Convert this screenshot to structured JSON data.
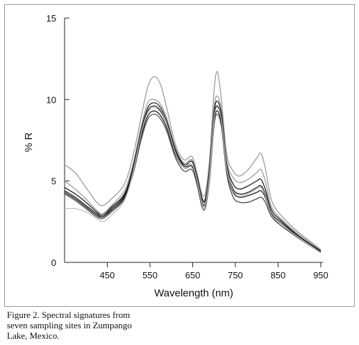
{
  "chart_data": {
    "type": "line",
    "xlabel": "Wavelength (nm)",
    "ylabel": "% R",
    "xlim": [
      350,
      955
    ],
    "ylim": [
      0,
      15
    ],
    "xticks": [
      450,
      550,
      650,
      750,
      850,
      950
    ],
    "yticks": [
      0,
      5,
      10,
      15
    ],
    "grid": false,
    "x": [
      350,
      375,
      400,
      425,
      440,
      460,
      490,
      510,
      530,
      545,
      560,
      575,
      590,
      610,
      630,
      648,
      660,
      672,
      680,
      690,
      700,
      708,
      718,
      730,
      745,
      760,
      780,
      800,
      810,
      820,
      835,
      860,
      900,
      950
    ],
    "series": [
      {
        "color": "#9b9b9b",
        "values": [
          6.0,
          5.5,
          4.6,
          3.7,
          3.5,
          3.9,
          4.8,
          6.5,
          9.0,
          10.8,
          11.4,
          10.9,
          9.4,
          7.2,
          6.3,
          6.5,
          5.5,
          4.2,
          4.3,
          6.5,
          10.5,
          11.7,
          9.8,
          6.6,
          5.6,
          5.3,
          5.7,
          6.4,
          6.7,
          5.8,
          3.8,
          2.8,
          1.8,
          0.8
        ]
      },
      {
        "color": "#9b9b9b",
        "values": [
          5.0,
          4.5,
          3.9,
          3.2,
          3.0,
          3.5,
          4.4,
          6.0,
          8.4,
          9.8,
          10.0,
          9.7,
          8.8,
          7.0,
          6.1,
          6.3,
          5.4,
          4.0,
          4.0,
          6.0,
          9.5,
          10.2,
          9.2,
          6.2,
          5.2,
          4.9,
          5.1,
          5.5,
          5.7,
          5.0,
          3.4,
          2.6,
          1.7,
          0.75
        ]
      },
      {
        "color": "#1a1a1a",
        "values": [
          4.6,
          4.2,
          3.7,
          3.1,
          2.9,
          3.4,
          4.2,
          5.8,
          8.2,
          9.5,
          9.8,
          9.5,
          8.6,
          6.9,
          6.0,
          6.2,
          5.3,
          3.9,
          3.9,
          5.9,
          9.2,
          9.9,
          9.0,
          6.0,
          4.8,
          4.5,
          4.7,
          5.0,
          5.1,
          4.5,
          3.2,
          2.5,
          1.6,
          0.7
        ]
      },
      {
        "color": "#1a1a1a",
        "values": [
          4.4,
          4.0,
          3.5,
          3.0,
          2.8,
          3.3,
          4.1,
          5.6,
          8.0,
          9.3,
          9.6,
          9.3,
          8.4,
          6.8,
          5.9,
          6.0,
          5.1,
          3.7,
          3.7,
          5.6,
          8.9,
          9.6,
          8.7,
          5.8,
          4.5,
          4.2,
          4.3,
          4.6,
          4.7,
          4.2,
          3.0,
          2.4,
          1.55,
          0.7
        ]
      },
      {
        "color": "#1a1a1a",
        "values": [
          4.3,
          3.9,
          3.4,
          2.9,
          2.8,
          3.2,
          4.0,
          5.5,
          7.8,
          9.0,
          9.3,
          9.0,
          8.2,
          6.6,
          5.8,
          5.9,
          5.0,
          3.6,
          3.6,
          5.4,
          8.6,
          9.3,
          8.4,
          5.6,
          4.3,
          4.0,
          4.1,
          4.3,
          4.4,
          4.0,
          2.9,
          2.3,
          1.5,
          0.65
        ]
      },
      {
        "color": "#4a4a4a",
        "values": [
          4.2,
          3.8,
          3.3,
          2.8,
          2.7,
          3.1,
          3.9,
          5.4,
          7.6,
          8.8,
          9.1,
          8.8,
          8.0,
          6.4,
          5.6,
          5.7,
          4.8,
          3.4,
          3.4,
          5.2,
          8.4,
          9.1,
          8.2,
          5.4,
          4.0,
          3.7,
          3.7,
          3.9,
          4.0,
          3.7,
          2.8,
          2.2,
          1.45,
          0.6
        ]
      },
      {
        "color": "#bdbdbd",
        "values": [
          3.3,
          3.3,
          3.1,
          2.7,
          2.5,
          2.9,
          3.8,
          5.5,
          8.0,
          9.2,
          9.5,
          9.2,
          8.4,
          6.7,
          5.8,
          6.0,
          5.1,
          3.6,
          3.6,
          5.5,
          8.8,
          9.5,
          8.6,
          5.7,
          4.4,
          4.1,
          4.2,
          4.5,
          4.6,
          4.1,
          2.9,
          2.3,
          1.5,
          0.6
        ]
      }
    ]
  },
  "caption": {
    "line1": "Figure 2. Spectral signatures from",
    "line2": "seven sampling sites in Zumpango",
    "line3": "Lake, Mexico."
  }
}
